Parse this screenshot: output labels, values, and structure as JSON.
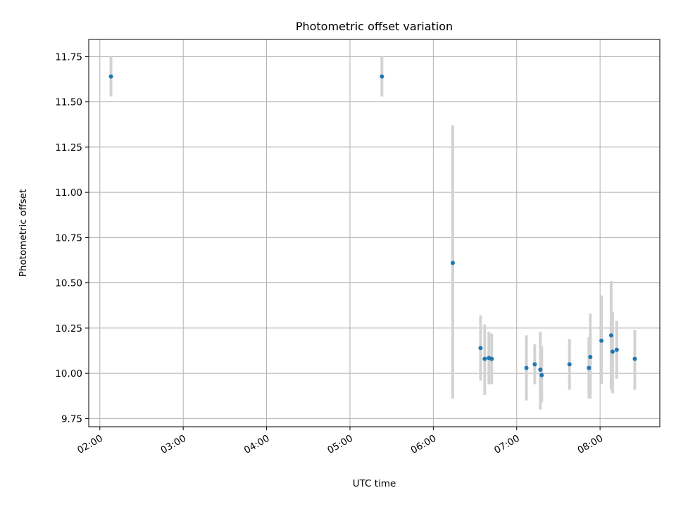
{
  "chart_data": {
    "type": "scatter",
    "title": "Photometric offset variation",
    "xlabel": "UTC time",
    "ylabel": "Photometric offset",
    "x_ticks": [
      "02:00",
      "03:00",
      "04:00",
      "05:00",
      "06:00",
      "07:00",
      "08:00"
    ],
    "y_ticks": [
      "9.75",
      "10.00",
      "10.25",
      "10.50",
      "10.75",
      "11.00",
      "11.25",
      "11.50",
      "11.75"
    ],
    "xlim": [
      "01:52",
      "08:43"
    ],
    "ylim": [
      9.705,
      11.845
    ],
    "grid": true,
    "colors": {
      "point": "#1f77b4",
      "errorbar": "#d3d3d3",
      "grid": "#b0b0b0"
    },
    "points": [
      {
        "x": "02:08",
        "y": 11.64,
        "err_low": 11.53,
        "err_high": 11.75
      },
      {
        "x": "05:23",
        "y": 11.64,
        "err_low": 11.53,
        "err_high": 11.75
      },
      {
        "x": "06:14",
        "y": 10.61,
        "err_low": 9.86,
        "err_high": 11.37
      },
      {
        "x": "06:34",
        "y": 10.14,
        "err_low": 9.96,
        "err_high": 10.32
      },
      {
        "x": "06:37",
        "y": 10.08,
        "err_low": 9.88,
        "err_high": 10.27
      },
      {
        "x": "06:40",
        "y": 10.085,
        "err_low": 9.94,
        "err_high": 10.23
      },
      {
        "x": "06:42",
        "y": 10.08,
        "err_low": 9.94,
        "err_high": 10.22
      },
      {
        "x": "07:07",
        "y": 10.03,
        "err_low": 9.85,
        "err_high": 10.21
      },
      {
        "x": "07:13",
        "y": 10.05,
        "err_low": 9.94,
        "err_high": 10.16
      },
      {
        "x": "07:17",
        "y": 10.02,
        "err_low": 9.8,
        "err_high": 10.23
      },
      {
        "x": "07:18",
        "y": 9.99,
        "err_low": 9.84,
        "err_high": 10.15
      },
      {
        "x": "07:38",
        "y": 10.05,
        "err_low": 9.91,
        "err_high": 10.19
      },
      {
        "x": "07:52",
        "y": 10.03,
        "err_low": 9.86,
        "err_high": 10.2
      },
      {
        "x": "07:53",
        "y": 10.09,
        "err_low": 9.86,
        "err_high": 10.33
      },
      {
        "x": "08:01",
        "y": 10.18,
        "err_low": 9.94,
        "err_high": 10.43
      },
      {
        "x": "08:08",
        "y": 10.21,
        "err_low": 9.91,
        "err_high": 10.51
      },
      {
        "x": "08:09",
        "y": 10.12,
        "err_low": 9.89,
        "err_high": 10.34
      },
      {
        "x": "08:12",
        "y": 10.13,
        "err_low": 9.97,
        "err_high": 10.29
      },
      {
        "x": "08:25",
        "y": 10.08,
        "err_low": 9.91,
        "err_high": 10.24
      }
    ]
  }
}
